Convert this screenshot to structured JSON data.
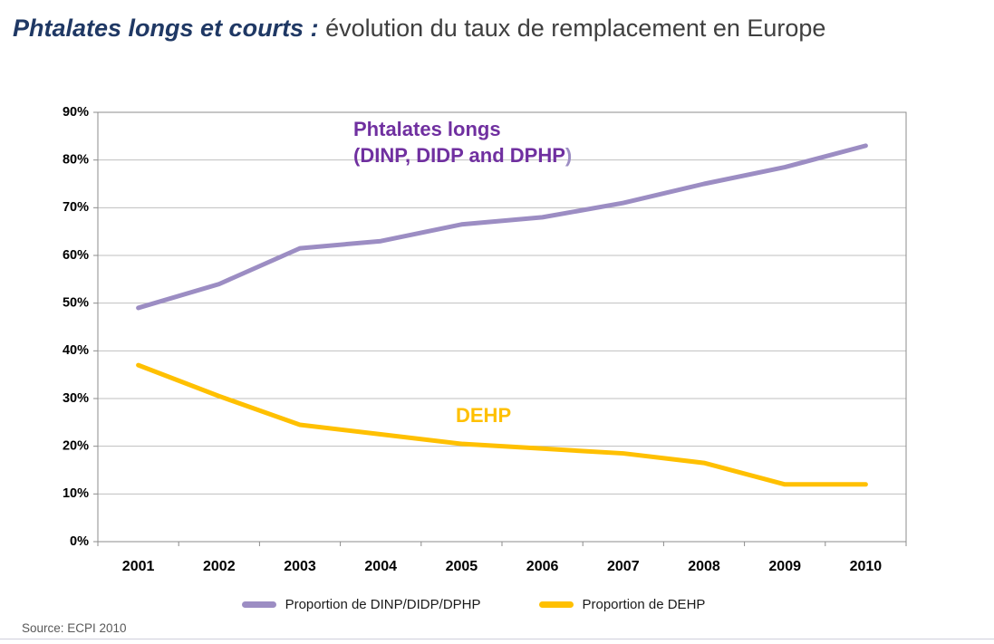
{
  "header": {
    "title_emphasis": "Phtalates longs et courts :",
    "title_rest": "évolution du taux de remplacement en Europe"
  },
  "annotations": {
    "long_line1": "Phtalates longs",
    "long_line2": "(DINP, DIDP and DPHP",
    "long_paren": ")",
    "dehp": "DEHP"
  },
  "legend": {
    "series1": "Proportion de DINP/DIDP/DPHP",
    "series2": "Proportion de DEHP"
  },
  "source": "Source: ECPI 2010",
  "colors": {
    "title_blue": "#1F3864",
    "title_gray": "#3f3f3f",
    "purple_line": "#9C8DC3",
    "purple_text": "#7030A0",
    "yellow": "#FFC000",
    "gridline": "#bfbfbf",
    "axis": "#8c8c8c"
  },
  "chart_data": {
    "type": "line",
    "title": "Phtalates longs et courts : évolution du taux de remplacement en Europe",
    "categories": [
      "2001",
      "2002",
      "2003",
      "2004",
      "2005",
      "2006",
      "2007",
      "2008",
      "2009",
      "2010"
    ],
    "series": [
      {
        "name": "Proportion de DINP/DIDP/DPHP",
        "color": "#9C8DC3",
        "values": [
          49,
          54,
          61.5,
          63,
          66.5,
          68,
          71,
          75,
          78.5,
          83
        ]
      },
      {
        "name": "Proportion de DEHP",
        "color": "#FFC000",
        "values": [
          37,
          30.5,
          24.5,
          22.5,
          20.5,
          19.5,
          18.5,
          16.5,
          12,
          12
        ]
      }
    ],
    "xlabel": "",
    "ylabel": "",
    "ylim": [
      0,
      90
    ],
    "ytick_step": 10,
    "ytick_format": "percent",
    "grid": true,
    "legend_position": "bottom"
  }
}
